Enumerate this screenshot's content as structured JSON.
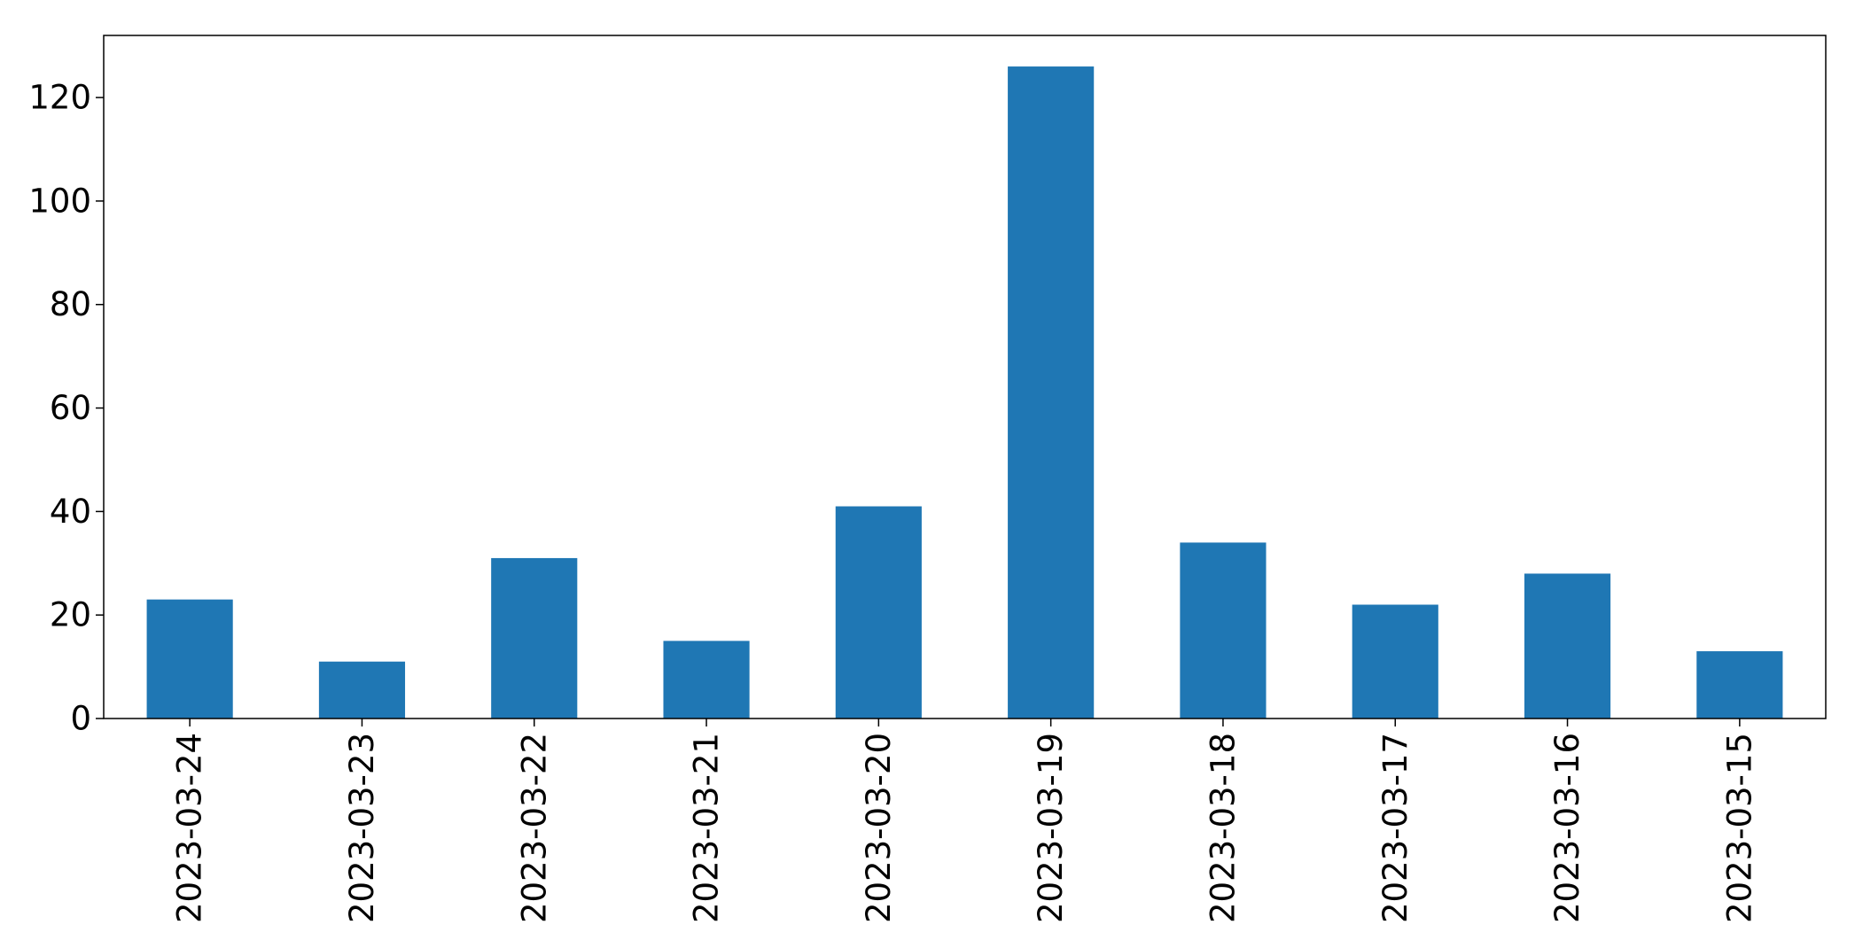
{
  "chart_data": {
    "type": "bar",
    "categories": [
      "2023-03-24",
      "2023-03-23",
      "2023-03-22",
      "2023-03-21",
      "2023-03-20",
      "2023-03-19",
      "2023-03-18",
      "2023-03-17",
      "2023-03-16",
      "2023-03-15"
    ],
    "values": [
      23,
      11,
      31,
      15,
      41,
      126,
      34,
      22,
      28,
      13
    ],
    "title": "",
    "xlabel": "",
    "ylabel": "",
    "ylim": [
      0,
      132
    ],
    "yticks": [
      0,
      20,
      40,
      60,
      80,
      100,
      120
    ],
    "grid": false,
    "legend": false,
    "bar_color": "#1f77b4",
    "x_tick_rotation_deg": 90
  }
}
